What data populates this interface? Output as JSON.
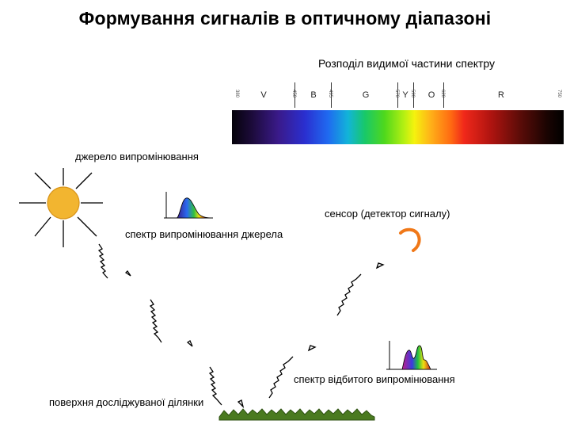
{
  "title": "Формування сигналів в оптичному діапазоні",
  "spectrum": {
    "caption": "Розподіл видимої частини спектру",
    "bands": [
      "V",
      "B",
      "G",
      "Y",
      "O",
      "R"
    ],
    "ticks": [
      "380",
      "450",
      "495",
      "570",
      "590",
      "620",
      "750"
    ]
  },
  "labels": {
    "source": "джерело випромінювання",
    "source_spectrum": "спектр випромінювання джерела",
    "sensor": "сенсор (детектор сигналу)",
    "reflected_spectrum": "спектр відбитого випромінювання",
    "surface": "поверхня досліджуваної ділянки"
  },
  "colors": {
    "sun": "#f2b530",
    "sensor": "#f07818",
    "ground": "#4a7a20"
  },
  "icons": [
    "sun-icon",
    "sensor-icon",
    "spectrum-curve-icon",
    "ground-icon"
  ]
}
